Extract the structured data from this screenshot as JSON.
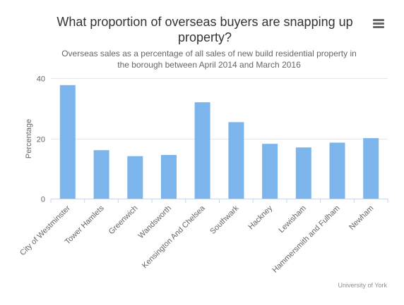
{
  "chart_data": {
    "type": "bar",
    "title_line1": "What proportion of overseas buyers are snapping up",
    "title_line2": "property?",
    "subtitle_line1": "Overseas sales as a percentage of all sales of new build residential property in",
    "subtitle_line2": "the borough between April 2014 and March 2016",
    "xlabel": "",
    "ylabel": "Percentage",
    "ylim": [
      0,
      40
    ],
    "yticks": [
      0,
      20,
      40
    ],
    "categories": [
      "City of Westminster",
      "Tower Hamlets",
      "Greenwich",
      "Wandsworth",
      "Kensington And Chelsea",
      "Southwark",
      "Hackney",
      "Lewisham",
      "Hammersmith and Fulham",
      "Newham"
    ],
    "values": [
      37.7,
      16.1,
      14.1,
      14.5,
      32.0,
      25.4,
      18.2,
      17.0,
      18.6,
      20.1
    ],
    "bar_color": "#7cb5ec",
    "grid": true,
    "legend": "none"
  },
  "menu": {
    "icon": "hamburger-menu-icon"
  },
  "credits": {
    "text": "University of York"
  }
}
